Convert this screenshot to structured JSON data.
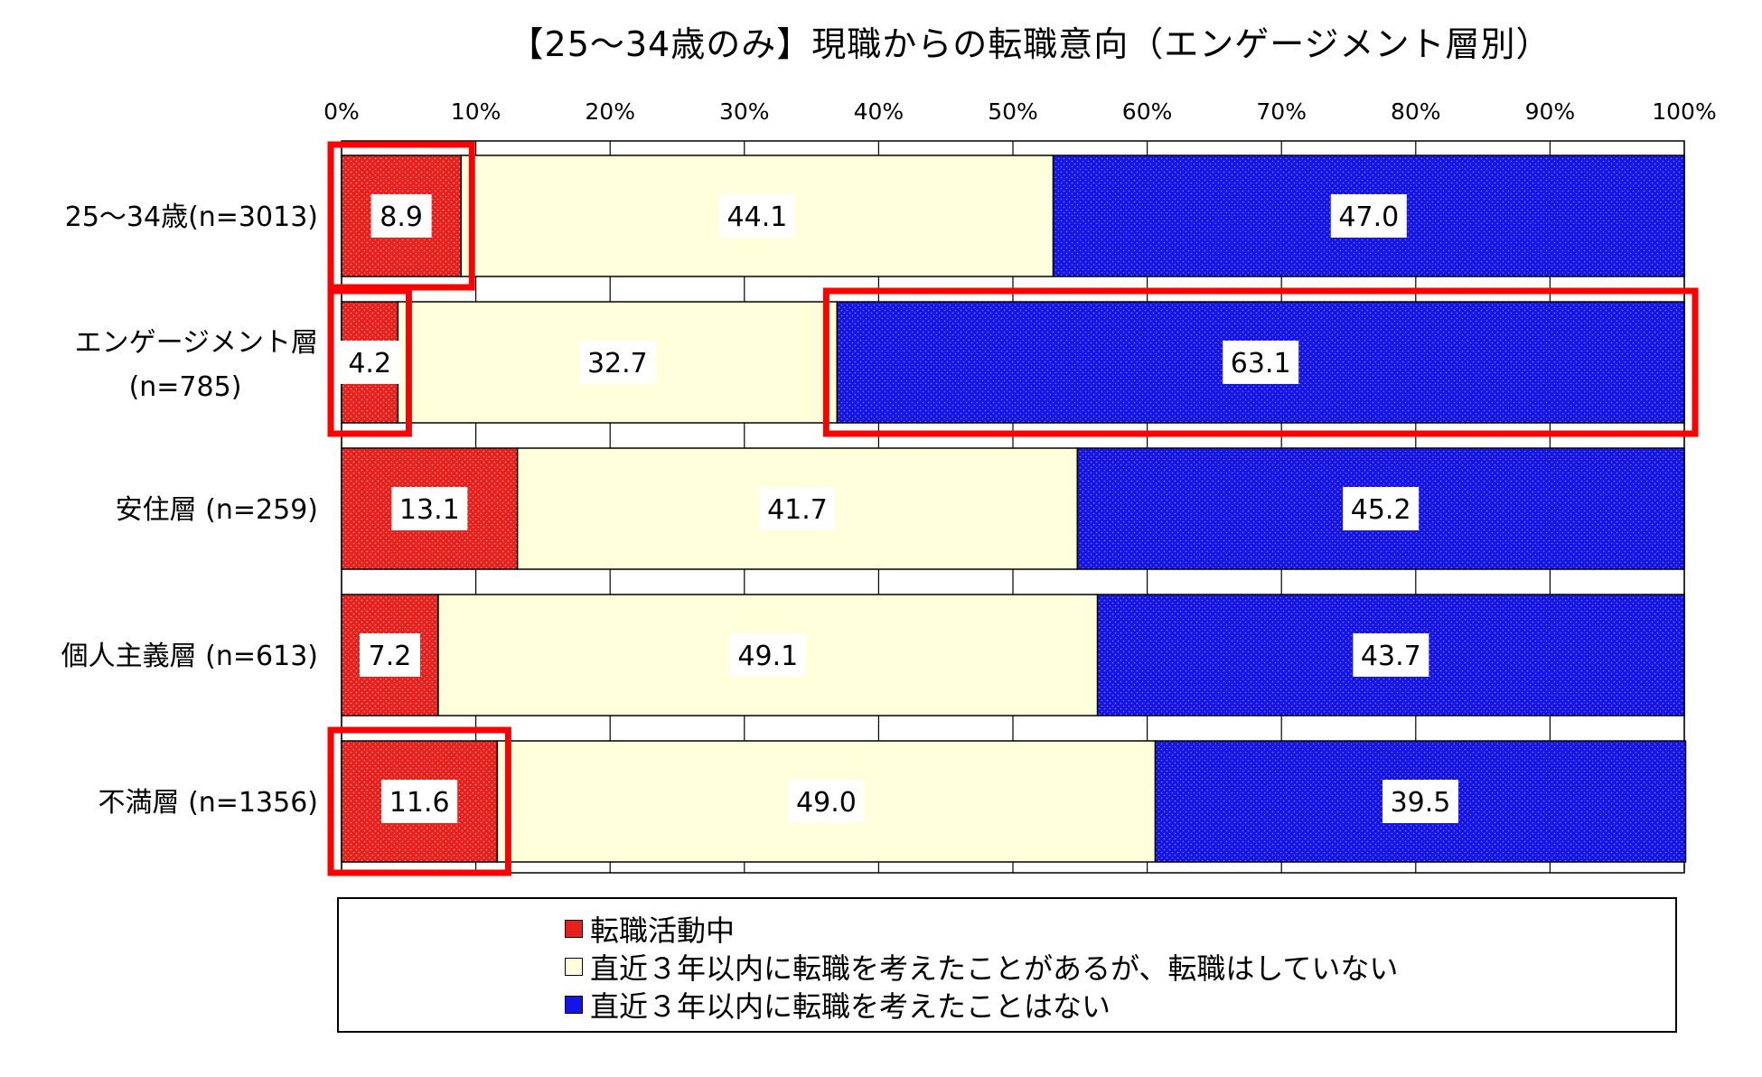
{
  "chart_data": {
    "type": "bar",
    "orientation": "horizontal",
    "stacked": true,
    "percent": true,
    "title": "【25～34歳のみ】現職からの転職意向（エンゲージメント層別）",
    "x_ticks": [
      "0%",
      "10%",
      "20%",
      "30%",
      "40%",
      "50%",
      "60%",
      "70%",
      "80%",
      "90%",
      "100%"
    ],
    "xlim": [
      0,
      100
    ],
    "grid": true,
    "legend_position": "bottom",
    "categories": [
      [
        "25～34歳(n=3013)"
      ],
      [
        "エンゲージメント層",
        "(n=785)"
      ],
      [
        "安住層 (n=259)"
      ],
      [
        "個人主義層 (n=613)"
      ],
      [
        "不満層 (n=1356)"
      ]
    ],
    "series": [
      {
        "name": "転職活動中",
        "color": "#e8201c",
        "values": [
          8.9,
          4.2,
          13.1,
          7.2,
          11.6
        ]
      },
      {
        "name": "直近３年以内に転職を考えたことがあるが、転職はしていない",
        "color": "#ffffdc",
        "values": [
          44.1,
          32.7,
          41.7,
          49.1,
          49.0
        ]
      },
      {
        "name": "直近３年以内に転職を考えたことはない",
        "color": "#1414e6",
        "values": [
          47.0,
          63.1,
          45.2,
          43.7,
          39.5
        ]
      }
    ],
    "data_labels": [
      [
        "8.9",
        "44.1",
        "47.0"
      ],
      [
        "4.2",
        "32.7",
        "63.1"
      ],
      [
        "13.1",
        "41.7",
        "45.2"
      ],
      [
        "7.2",
        "49.1",
        "43.7"
      ],
      [
        "11.6",
        "49.0",
        "39.5"
      ]
    ],
    "highlights": [
      {
        "category_index": 0,
        "from": 0,
        "to": 8.9
      },
      {
        "category_index": 1,
        "from": 0,
        "to": 4.2
      },
      {
        "category_index": 1,
        "from": 36.9,
        "to": 100
      },
      {
        "category_index": 4,
        "from": 0,
        "to": 11.6
      }
    ],
    "highlight_color": "#ff0000"
  }
}
